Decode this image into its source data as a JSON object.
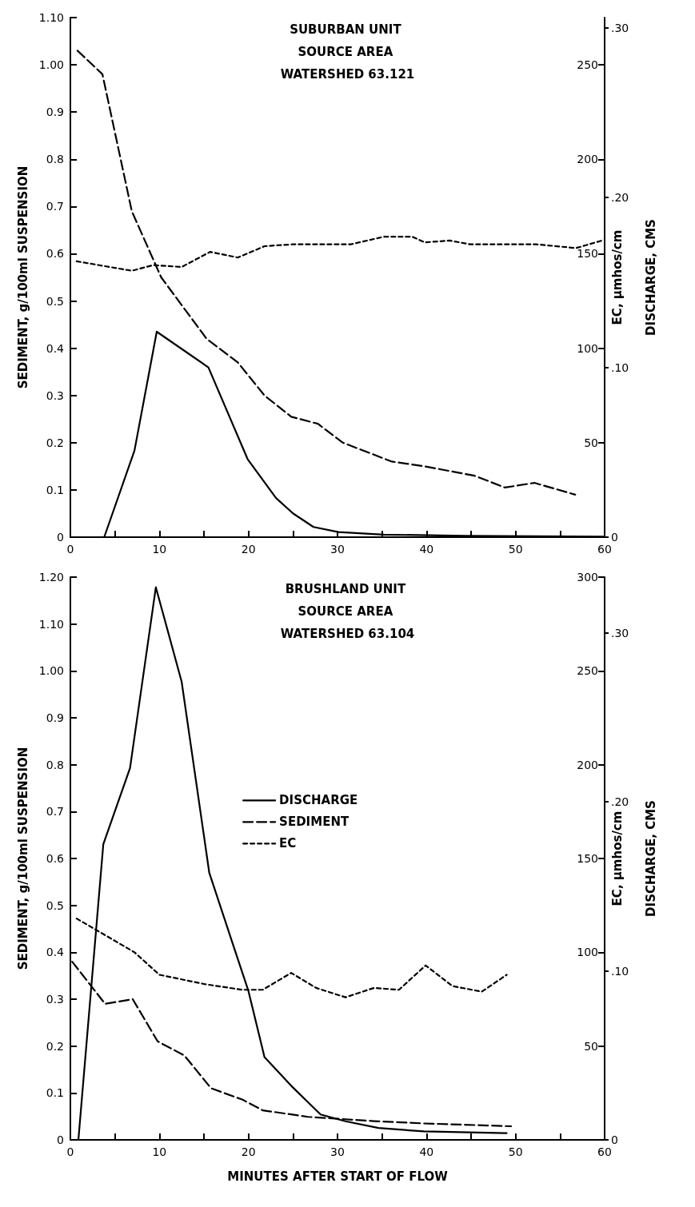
{
  "chart_data": [
    {
      "type": "line",
      "title": "SUBURBAN UNIT SOURCE AREA WATERSHED 63.121",
      "ylabel": "SEDIMENT, g/100ml SUSPENSION",
      "y2label": "EC, µmhos/cm",
      "y3label": "DISCHARGE, CMS",
      "xlim": [
        0,
        60
      ],
      "xticks": [
        0,
        {
          "value": 5,
          "label": null
        },
        10,
        {
          "value": 15,
          "label": null
        },
        20,
        {
          "value": 25,
          "label": null
        },
        30,
        {
          "value": 35,
          "label": null
        },
        40,
        {
          "value": 45,
          "label": null
        },
        50,
        {
          "value": 55,
          "label": null
        },
        60
      ],
      "ylim": [
        0,
        1.1
      ],
      "yticks": [
        0,
        0.1,
        0.2,
        0.3,
        0.4,
        0.5,
        0.6,
        0.7,
        0.8,
        0.9,
        {
          "value": 1,
          "label": "1.00"
        },
        {
          "value": 1.1,
          "label": "1.10"
        }
      ],
      "y2lim": [
        0,
        275
      ],
      "y2ticks": [
        {
          "value": 0,
          "label": null
        },
        50,
        100,
        150,
        200,
        250
      ],
      "y3lim": [
        0,
        0.306
      ],
      "y3ticks": [
        0,
        {
          "value": 0.1,
          "label": ".10"
        },
        {
          "value": 0.2,
          "label": ".20"
        },
        {
          "value": 0.3,
          "label": ".30"
        }
      ],
      "grid": false,
      "legend": false,
      "series": [
        {
          "color": "#000000",
          "line_style": "solid",
          "axis": "y3",
          "x": [
            0,
            3.8,
            7.2,
            9.7,
            15.5,
            19.9,
            23.1,
            25,
            27.3,
            30.1,
            35.2,
            44.4,
            60
          ],
          "values": [
            0,
            0,
            0.051,
            0.121,
            0.1,
            0.046,
            0.023,
            0.014,
            0.006,
            0.003,
            0.0015,
            0.0008,
            0.0003
          ]
        },
        {
          "color": "#000000",
          "line_style": "dashed",
          "x": [
            0.8,
            3.6,
            6.9,
            10.2,
            15.3,
            18.8,
            21.8,
            24.8,
            27.8,
            30.6,
            36.1,
            39.8,
            45.4,
            48.8,
            52.1,
            56.7
          ],
          "values": [
            1.03,
            0.98,
            0.69,
            0.55,
            0.42,
            0.37,
            0.3,
            0.255,
            0.24,
            0.2,
            0.16,
            0.15,
            0.13,
            0.105,
            0.115,
            0.09
          ]
        },
        {
          "color": "#000000",
          "line_style": "dotted",
          "axis": "y2",
          "x": [
            0.7,
            6.9,
            9.3,
            12.5,
            15.7,
            18.8,
            21.8,
            25,
            31.5,
            35.2,
            38.4,
            39.8,
            42.6,
            44.9,
            52.3,
            56.8,
            59.7
          ],
          "values": [
            146,
            141,
            144,
            143,
            151,
            148,
            154,
            155,
            155,
            159,
            159,
            156,
            157,
            155,
            155,
            153,
            157
          ]
        }
      ]
    },
    {
      "type": "line",
      "title": "BRUSHLAND UNIT SOURCE AREA WATERSHED 63.104",
      "xlabel": "MINUTES AFTER START OF FLOW",
      "ylabel": "SEDIMENT, g/100ml SUSPENSION",
      "y2label": "EC, µmhos/cm",
      "y3label": "DISCHARGE, CMS",
      "xlim": [
        0,
        60
      ],
      "xticks": [
        0,
        {
          "value": 5,
          "label": null
        },
        10,
        {
          "value": 15,
          "label": null
        },
        20,
        {
          "value": 25,
          "label": null
        },
        30,
        {
          "value": 35,
          "label": null
        },
        40,
        {
          "value": 45,
          "label": null
        },
        50,
        {
          "value": 55,
          "label": null
        },
        60
      ],
      "ylim": [
        0,
        1.2
      ],
      "yticks": [
        0,
        0.1,
        0.2,
        0.3,
        0.4,
        0.5,
        0.6,
        0.7,
        0.8,
        0.9,
        {
          "value": 1,
          "label": "1.00"
        },
        {
          "value": 1.1,
          "label": "1.10"
        },
        {
          "value": 1.2,
          "label": "1.20"
        }
      ],
      "y2lim": [
        0,
        300
      ],
      "y2ticks": [
        {
          "value": 0,
          "label": null
        },
        50,
        100,
        150,
        200,
        250,
        300
      ],
      "y3lim": [
        0,
        0.333
      ],
      "y3ticks": [
        0,
        {
          "value": 0.1,
          "label": ".10"
        },
        {
          "value": 0.2,
          "label": ".20"
        },
        {
          "value": 0.3,
          "label": ".30"
        }
      ],
      "grid": false,
      "legend": "center left",
      "series": [
        {
          "name": "DISCHARGE",
          "color": "#000000",
          "line_style": "solid",
          "axis": "y3",
          "x": [
            0.9,
            3.7,
            6.7,
            9.6,
            12.5,
            15.6,
            18.3,
            20,
            21.8,
            24.8,
            28.1,
            30.9,
            34.6,
            39.7,
            49
          ],
          "values": [
            0,
            0.175,
            0.22,
            0.327,
            0.271,
            0.158,
            0.115,
            0.088,
            0.049,
            0.032,
            0.015,
            0.011,
            0.007,
            0.005,
            0.004
          ]
        },
        {
          "name": "SEDIMENT",
          "color": "#000000",
          "line_style": "dashed",
          "x": [
            0.2,
            3.9,
            7,
            9.8,
            12.8,
            15.8,
            19.3,
            21.6,
            26.7,
            34.1,
            39.7,
            49.5
          ],
          "values": [
            0.38,
            0.29,
            0.3,
            0.21,
            0.18,
            0.11,
            0.086,
            0.063,
            0.049,
            0.04,
            0.035,
            0.029
          ]
        },
        {
          "name": "EC",
          "color": "#000000",
          "line_style": "dotted",
          "axis": "y2",
          "x": [
            0.7,
            7.2,
            10,
            15.1,
            19.3,
            21.6,
            24.8,
            27.6,
            30.9,
            34.1,
            36.9,
            39.9,
            42.9,
            46.2,
            49
          ],
          "values": [
            118,
            100,
            88,
            83,
            80,
            80,
            89,
            81,
            76,
            81,
            80,
            93,
            82,
            79,
            88
          ]
        }
      ]
    }
  ]
}
